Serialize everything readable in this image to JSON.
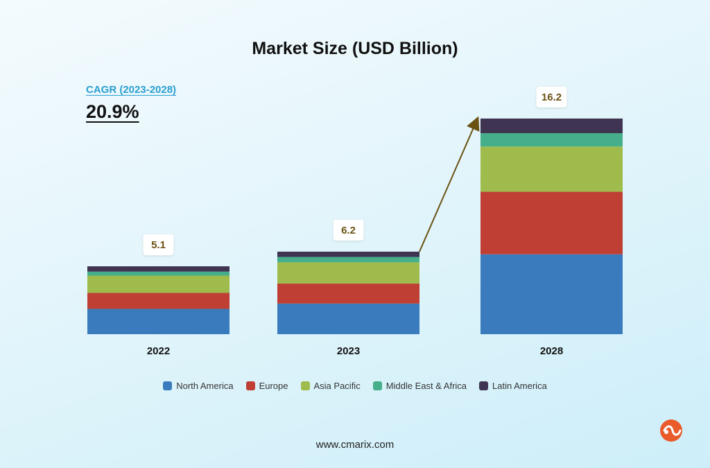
{
  "chart_data": {
    "type": "bar",
    "stacked": true,
    "title": "Market Size (USD Billion)",
    "categories": [
      "2022",
      "2023",
      "2028"
    ],
    "totals": [
      "5.1",
      "6.2",
      "16.2"
    ],
    "series": [
      {
        "name": "North America",
        "color": "#3a7bbd",
        "values": [
          1.9,
          2.3,
          6.0
        ]
      },
      {
        "name": "Europe",
        "color": "#bf3f35",
        "values": [
          1.2,
          1.5,
          4.7
        ]
      },
      {
        "name": "Asia Pacific",
        "color": "#9fbb4c",
        "values": [
          1.3,
          1.6,
          3.4
        ]
      },
      {
        "name": "Middle East & Africa",
        "color": "#45ae8a",
        "values": [
          0.3,
          0.4,
          1.0
        ]
      },
      {
        "name": "Latin America",
        "color": "#3f3552",
        "values": [
          0.4,
          0.4,
          1.1
        ]
      }
    ],
    "grid": false,
    "legend": "bottom-center",
    "annotation": {
      "label": "CAGR (2023-2028)",
      "value": "20.9%"
    }
  },
  "footer": {
    "url": "www.cmarix.com"
  },
  "colors": {
    "label_text": "#6b5213",
    "cagr_accent": "#2a9fcf",
    "arrow": "#6b5213",
    "logo": "#ea5b2b"
  },
  "icons": {
    "logo": "cmarix-logo-icon"
  }
}
